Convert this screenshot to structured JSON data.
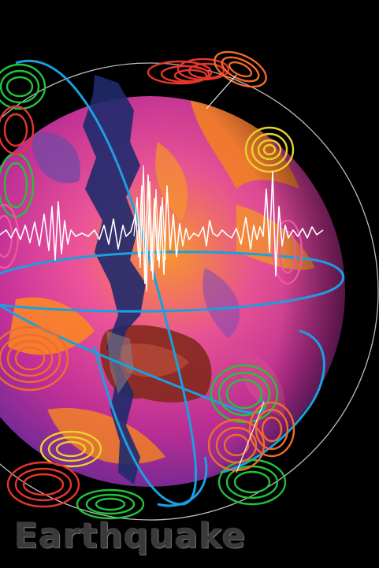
{
  "poster": {
    "title": "Earthquake"
  },
  "colors": {
    "background": "#000000",
    "globe_pink": "#e0429b",
    "globe_orange": "#ff8a1f",
    "globe_purple": "#8a4fb8",
    "fault_dark": "#1f2a6b",
    "orbit_blue": "#1aa0e0",
    "ring_green": "#23c23a",
    "ring_red": "#e8352c",
    "ring_orange": "#f26b2a",
    "ring_yellow": "#e6d32a",
    "seismogram": "#ffffff"
  },
  "elements": [
    "outer-orbit-circle",
    "globe",
    "fault-crack",
    "australia-landmass",
    "blue-orbit-rings",
    "seismic-wave-ripples",
    "seismogram-trace"
  ]
}
